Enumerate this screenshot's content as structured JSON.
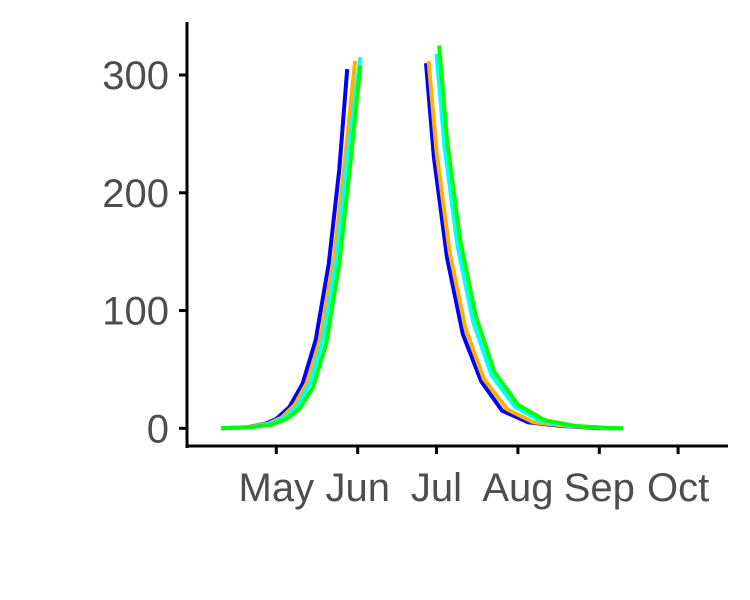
{
  "chart_data": {
    "type": "line",
    "title": "",
    "xlabel": "",
    "ylabel": "",
    "x_ticks": [
      "May",
      "Jun",
      "Jul",
      "Aug",
      "Sep",
      "Oct"
    ],
    "y_ticks": [
      "0",
      "100",
      "200",
      "300"
    ],
    "ylim": [
      -15,
      345
    ],
    "xlim": [
      "2021-03-28",
      "2021-10-20"
    ],
    "grid": false,
    "legend": "none",
    "series": [
      {
        "color": "#0000ff",
        "segments": [
          [
            [
              "2021-04-10",
              0
            ],
            [
              "2021-04-20",
              1
            ],
            [
              "2021-04-27",
              4
            ],
            [
              "2021-05-01",
              8
            ],
            [
              "2021-05-06",
              18
            ],
            [
              "2021-05-11",
              38
            ],
            [
              "2021-05-16",
              75
            ],
            [
              "2021-05-21",
              140
            ],
            [
              "2021-05-25",
              220
            ],
            [
              "2021-05-28",
              305
            ]
          ],
          [
            [
              "2021-06-27",
              310
            ],
            [
              "2021-06-30",
              230
            ],
            [
              "2021-07-05",
              145
            ],
            [
              "2021-07-11",
              80
            ],
            [
              "2021-07-18",
              40
            ],
            [
              "2021-07-26",
              15
            ],
            [
              "2021-08-05",
              5
            ],
            [
              "2021-08-18",
              2
            ],
            [
              "2021-09-01",
              0
            ],
            [
              "2021-09-09",
              0
            ]
          ]
        ]
      },
      {
        "color": "#ffb000",
        "segments": [
          [
            [
              "2021-04-10",
              0
            ],
            [
              "2021-04-20",
              1
            ],
            [
              "2021-04-28",
              4
            ],
            [
              "2021-05-03",
              9
            ],
            [
              "2021-05-08",
              20
            ],
            [
              "2021-05-13",
              40
            ],
            [
              "2021-05-18",
              78
            ],
            [
              "2021-05-23",
              145
            ],
            [
              "2021-05-27",
              225
            ],
            [
              "2021-05-31",
              312
            ]
          ],
          [
            [
              "2021-06-28",
              312
            ],
            [
              "2021-07-01",
              235
            ],
            [
              "2021-07-06",
              150
            ],
            [
              "2021-07-12",
              85
            ],
            [
              "2021-07-19",
              42
            ],
            [
              "2021-07-28",
              16
            ],
            [
              "2021-08-07",
              5
            ],
            [
              "2021-08-20",
              2
            ],
            [
              "2021-09-03",
              0
            ],
            [
              "2021-09-09",
              0
            ]
          ]
        ]
      },
      {
        "color": "#00ffff",
        "segments": [
          [
            [
              "2021-04-10",
              0
            ],
            [
              "2021-04-21",
              1
            ],
            [
              "2021-04-29",
              4
            ],
            [
              "2021-05-04",
              9
            ],
            [
              "2021-05-09",
              19
            ],
            [
              "2021-05-14",
              39
            ],
            [
              "2021-05-19",
              78
            ],
            [
              "2021-05-24",
              145
            ],
            [
              "2021-05-28",
              228
            ],
            [
              "2021-06-02",
              315
            ]
          ],
          [
            [
              "2021-07-01",
              318
            ],
            [
              "2021-07-04",
              240
            ],
            [
              "2021-07-09",
              155
            ],
            [
              "2021-07-15",
              90
            ],
            [
              "2021-07-22",
              45
            ],
            [
              "2021-07-31",
              18
            ],
            [
              "2021-08-10",
              6
            ],
            [
              "2021-08-22",
              2
            ],
            [
              "2021-09-05",
              0
            ],
            [
              "2021-09-10",
              0
            ]
          ]
        ]
      },
      {
        "color": "#00ff00",
        "segments": [
          [
            [
              "2021-04-10",
              0
            ],
            [
              "2021-04-21",
              1
            ],
            [
              "2021-04-29",
              3
            ],
            [
              "2021-05-05",
              8
            ],
            [
              "2021-05-10",
              17
            ],
            [
              "2021-05-15",
              35
            ],
            [
              "2021-05-20",
              72
            ],
            [
              "2021-05-25",
              140
            ],
            [
              "2021-05-29",
              220
            ],
            [
              "2021-06-02",
              308
            ]
          ],
          [
            [
              "2021-07-02",
              325
            ],
            [
              "2021-07-05",
              245
            ],
            [
              "2021-07-10",
              160
            ],
            [
              "2021-07-16",
              95
            ],
            [
              "2021-07-23",
              48
            ],
            [
              "2021-08-01",
              20
            ],
            [
              "2021-08-11",
              7
            ],
            [
              "2021-08-23",
              2
            ],
            [
              "2021-09-06",
              0
            ],
            [
              "2021-09-10",
              0
            ]
          ]
        ]
      }
    ],
    "x_tick_dates": [
      "2021-05-01",
      "2021-06-01",
      "2021-07-01",
      "2021-08-01",
      "2021-09-01",
      "2021-10-01"
    ]
  }
}
